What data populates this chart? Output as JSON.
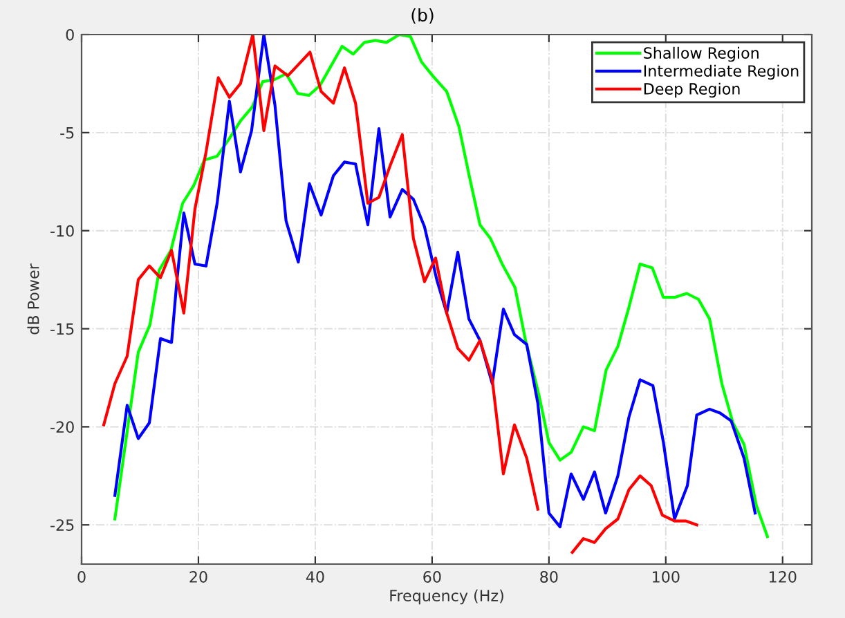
{
  "chart_data": {
    "type": "line",
    "title": "(b)",
    "xlabel": "Frequency (Hz)",
    "ylabel": "dB Power",
    "xlim": [
      0,
      125
    ],
    "xticks": [
      0,
      20,
      40,
      60,
      80,
      100,
      120
    ],
    "ylim": [
      -27,
      0
    ],
    "yticks": [
      0,
      -5,
      -10,
      -15,
      -20,
      -25
    ],
    "grid": true,
    "legend": "top right",
    "line_style": "solid",
    "marker": "none",
    "series": [
      {
        "name": "Shallow Region",
        "color": "#00ff00",
        "x": [
          5.7,
          9.7,
          11.7,
          13.3,
          15.3,
          17.3,
          19.2,
          21,
          23.2,
          25.3,
          27.2,
          29.2,
          31,
          33,
          35,
          37,
          38.9,
          40.8,
          42.7,
          44.6,
          46.5,
          48.4,
          50.3,
          52.2,
          54.4,
          56.3,
          58.2,
          60.1,
          62.5,
          64.6,
          66.5,
          68.2,
          70,
          72,
          74.2,
          76,
          78.3,
          80,
          81.9,
          83.8,
          85.9,
          87.8,
          89.8,
          91.8,
          93.7,
          95.6,
          97.7,
          99.6,
          101.5,
          103.6,
          105.6,
          107.5,
          109.6,
          111.5,
          113.4,
          115.5,
          117.4
        ],
        "values": [
          -24.7,
          -16.2,
          -14.8,
          -12.0,
          -11.0,
          -8.6,
          -7.7,
          -6.4,
          -6.2,
          -5.3,
          -4.4,
          -3.7,
          -2.4,
          -2.3,
          -2.0,
          -3.0,
          -3.1,
          -2.6,
          -1.6,
          -0.6,
          -1.0,
          -0.4,
          -0.3,
          -0.4,
          0,
          -0.1,
          -1.4,
          -2.1,
          -2.9,
          -4.7,
          -7.4,
          -9.7,
          -10.4,
          -11.7,
          -12.9,
          -15.6,
          -18.4,
          -20.8,
          -21.7,
          -21.3,
          -20.0,
          -20.2,
          -17.1,
          -15.9,
          -13.9,
          -11.7,
          -11.9,
          -13.4,
          -13.4,
          -13.2,
          -13.5,
          -14.5,
          -17.8,
          -19.8,
          -20.9,
          -24.0,
          -25.6
        ]
      },
      {
        "name": "Intermediate Region",
        "color": "#0000ff",
        "x": [
          5.7,
          7.8,
          9.7,
          11.6,
          13.5,
          15.4,
          16.3,
          17.5,
          19.4,
          21.3,
          23.2,
          25.3,
          27.2,
          29.1,
          31.2,
          33.1,
          35,
          37.1,
          39,
          41,
          43.1,
          45,
          46.9,
          49,
          50.9,
          52.8,
          54.9,
          56.8,
          58.7,
          60.8,
          62.5,
          64.4,
          66.3,
          68.2,
          70.3,
          72.2,
          74.1,
          76.2,
          78.1,
          80,
          81.9,
          83.8,
          85.9,
          87.8,
          89.7,
          91.8,
          93.7,
          95.6,
          97.8,
          99.6,
          101.5,
          103.7,
          105.3,
          107.5,
          109.3,
          111.2,
          113.4,
          115.3
        ],
        "values": [
          -23.5,
          -18.9,
          -20.6,
          -19.8,
          -15.5,
          -15.7,
          -12.6,
          -9.1,
          -11.7,
          -11.8,
          -8.6,
          -3.4,
          -7.0,
          -4.9,
          0,
          -3.6,
          -9.5,
          -11.6,
          -7.6,
          -9.2,
          -7.2,
          -6.5,
          -6.6,
          -9.7,
          -4.8,
          -9.3,
          -7.9,
          -8.4,
          -9.8,
          -12.5,
          -14.2,
          -11.1,
          -14.5,
          -15.6,
          -17.8,
          -14.0,
          -15.3,
          -15.8,
          -18.8,
          -24.4,
          -25.1,
          -22.4,
          -23.7,
          -22.3,
          -24.4,
          -22.5,
          -19.5,
          -17.6,
          -17.9,
          -20.8,
          -24.7,
          -23.0,
          -19.4,
          -19.1,
          -19.3,
          -19.7,
          -21.6,
          -24.4
        ]
      },
      {
        "name": "Deep Region",
        "color": "#ff0000",
        "x": [
          3.8,
          5.7,
          7.8,
          9.7,
          11.6,
          13.5,
          15.4,
          17.5,
          19.4,
          21.3,
          23.4,
          25.3,
          27.2,
          29.3,
          31.2,
          33.1,
          35.3,
          37.2,
          39.1,
          41,
          43.1,
          45,
          46.9,
          49,
          50.9,
          52.8,
          54.9,
          56.8,
          58.7,
          60.6,
          62.5,
          64.4,
          66.3,
          68.2,
          70.3,
          72.2,
          74.1,
          76.2,
          78.1,
          81.3,
          84,
          85.9,
          87.8,
          89.7,
          91.8,
          93.7,
          95.6,
          97.5,
          99.4,
          101.5,
          103.4,
          105.3
        ],
        "values": [
          -19.9,
          -17.8,
          -16.4,
          -12.5,
          -11.8,
          -12.4,
          -11.0,
          -14.2,
          -8.9,
          -6.0,
          -2.2,
          -3.2,
          -2.5,
          0,
          -4.9,
          -1.6,
          -2.1,
          -1.5,
          -0.9,
          -2.9,
          -3.5,
          -1.7,
          -3.5,
          -8.6,
          -8.3,
          -6.7,
          -5.1,
          -10.4,
          -12.6,
          -11.4,
          -14.2,
          -16.0,
          -16.6,
          -15.6,
          -17.6,
          -22.4,
          -19.9,
          -21.6,
          -24.2,
          null,
          -26.4,
          -25.7,
          -25.9,
          -25.2,
          -24.7,
          -23.2,
          -22.5,
          -23.0,
          -24.5,
          -24.8,
          -24.8,
          -25.0
        ]
      }
    ]
  }
}
